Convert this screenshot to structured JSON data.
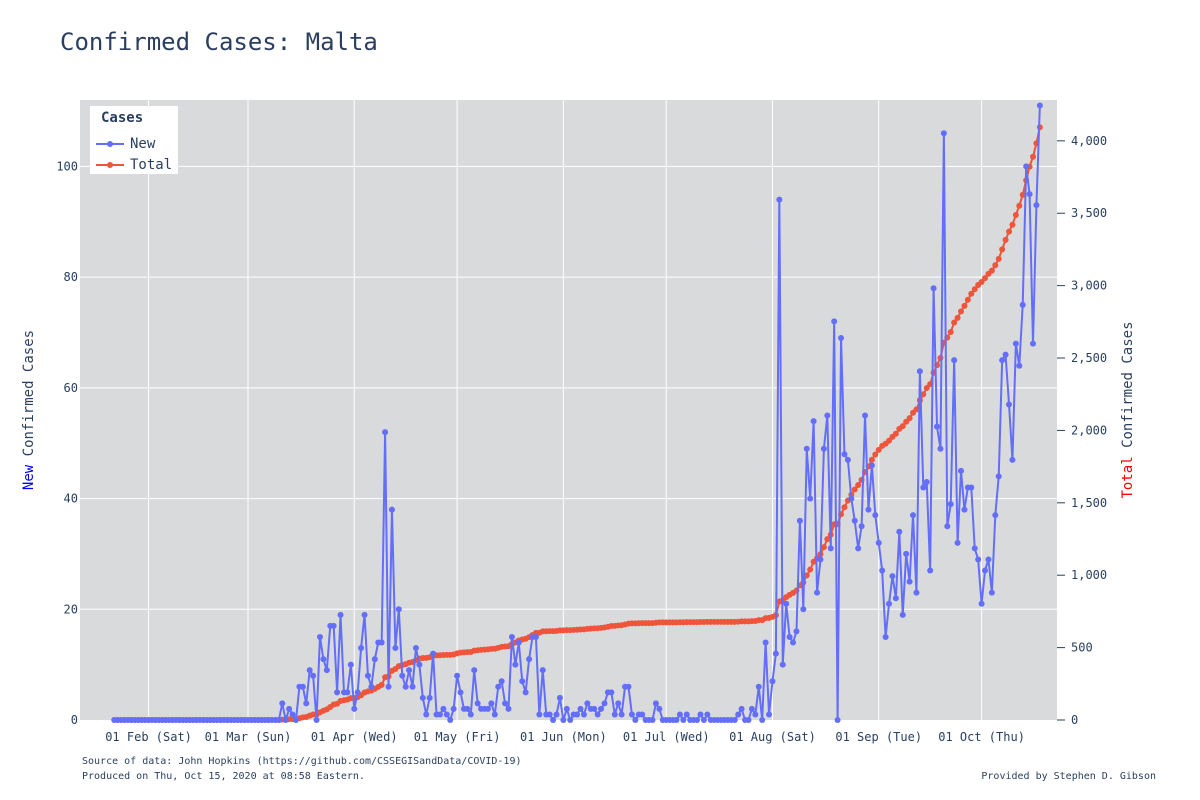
{
  "page": {
    "title": "Confirmed Cases: Malta",
    "source_line": "Source of data: John Hopkins (https://github.com/CSSEGISandData/COVID-19)",
    "produced_line": "Produced on Thu, Oct 15, 2020 at 08:58 Eastern.",
    "credit_line": "Provided by Stephen D. Gibson"
  },
  "legend": {
    "title": "Cases",
    "new_label": "New",
    "total_label": "Total"
  },
  "axes": {
    "left_title_colored": "New",
    "left_title_rest": " Confirmed Cases",
    "right_title_colored": "Total",
    "right_title_rest": " Confirmed Cases"
  },
  "colors": {
    "new": "#636efa",
    "total": "#ef553b",
    "plot_bg": "#d9dadc",
    "grid": "#ffffff",
    "text": "#2a3f5f",
    "left_title_accent": "#0000ff",
    "right_title_accent": "#ff0000"
  },
  "chart_data": {
    "type": "line",
    "title": "Confirmed Cases: Malta",
    "x_start": "2020-01-22",
    "x_range": [
      "2020-01-12",
      "2020-10-23"
    ],
    "x_ticks": [
      {
        "date": "2020-02-01",
        "label": "01 Feb (Sat)"
      },
      {
        "date": "2020-03-01",
        "label": "01 Mar (Sun)"
      },
      {
        "date": "2020-04-01",
        "label": "01 Apr (Wed)"
      },
      {
        "date": "2020-05-01",
        "label": "01 May (Fri)"
      },
      {
        "date": "2020-06-01",
        "label": "01 Jun (Mon)"
      },
      {
        "date": "2020-07-01",
        "label": "01 Jul (Wed)"
      },
      {
        "date": "2020-08-01",
        "label": "01 Aug (Sat)"
      },
      {
        "date": "2020-09-01",
        "label": "01 Sep (Tue)"
      },
      {
        "date": "2020-10-01",
        "label": "01 Oct (Thu)"
      }
    ],
    "y_left": {
      "label": "New Confirmed Cases",
      "range": [
        0,
        112
      ],
      "ticks": [
        0,
        20,
        40,
        60,
        80,
        100
      ]
    },
    "y_right": {
      "label": "Total Confirmed Cases",
      "range": [
        0,
        4282
      ],
      "ticks": [
        0,
        500,
        1000,
        1500,
        2000,
        2500,
        3000,
        3500,
        4000
      ],
      "tick_labels": [
        "0",
        "500",
        "1,000",
        "1,500",
        "2,000",
        "2,500",
        "3,000",
        "3,500",
        "4,000"
      ]
    },
    "grid": true,
    "legend_position": "top-left",
    "series": [
      {
        "name": "New",
        "axis": "left",
        "values": [
          0,
          0,
          0,
          0,
          0,
          0,
          0,
          0,
          0,
          0,
          0,
          0,
          0,
          0,
          0,
          0,
          0,
          0,
          0,
          0,
          0,
          0,
          0,
          0,
          0,
          0,
          0,
          0,
          0,
          0,
          0,
          0,
          0,
          0,
          0,
          0,
          0,
          0,
          0,
          0,
          0,
          0,
          0,
          0,
          0,
          0,
          0,
          0,
          0,
          3,
          0,
          2,
          1,
          0,
          6,
          6,
          3,
          9,
          8,
          0,
          15,
          11,
          9,
          17,
          17,
          5,
          19,
          5,
          5,
          10,
          2,
          5,
          13,
          19,
          8,
          6,
          11,
          14,
          14,
          52,
          6,
          38,
          13,
          20,
          8,
          6,
          9,
          6,
          13,
          10,
          4,
          1,
          4,
          12,
          1,
          1,
          2,
          1,
          0,
          2,
          8,
          5,
          2,
          2,
          1,
          9,
          3,
          2,
          2,
          2,
          3,
          1,
          6,
          7,
          3,
          2,
          15,
          10,
          14,
          7,
          5,
          11,
          15,
          15,
          1,
          9,
          1,
          1,
          0,
          1,
          4,
          0,
          2,
          0,
          1,
          1,
          2,
          1,
          3,
          2,
          2,
          1,
          2,
          3,
          5,
          5,
          1,
          3,
          1,
          6,
          6,
          1,
          0,
          1,
          1,
          0,
          0,
          0,
          3,
          2,
          0,
          0,
          0,
          0,
          0,
          1,
          0,
          1,
          0,
          0,
          0,
          1,
          0,
          1,
          0,
          0,
          0,
          0,
          0,
          0,
          0,
          0,
          1,
          2,
          0,
          0,
          2,
          1,
          6,
          0,
          14,
          1,
          7,
          12,
          94,
          10,
          21,
          15,
          14,
          16,
          36,
          20,
          49,
          40,
          54,
          23,
          29,
          49,
          55,
          31,
          72,
          0,
          69,
          48,
          47,
          40,
          36,
          31,
          35,
          55,
          38,
          46,
          37,
          32,
          27,
          15,
          21,
          26,
          22,
          34,
          19,
          30,
          25,
          37,
          23,
          63,
          42,
          43,
          27,
          78,
          53,
          49,
          106,
          35,
          39,
          65,
          32,
          45,
          38,
          42,
          42,
          31,
          29,
          21,
          27,
          29,
          23,
          37,
          44,
          65,
          66,
          57,
          47,
          68,
          64,
          75,
          100,
          95,
          68,
          93,
          111
        ]
      },
      {
        "name": "Total",
        "axis": "right",
        "cumulative_of": "New"
      }
    ]
  }
}
